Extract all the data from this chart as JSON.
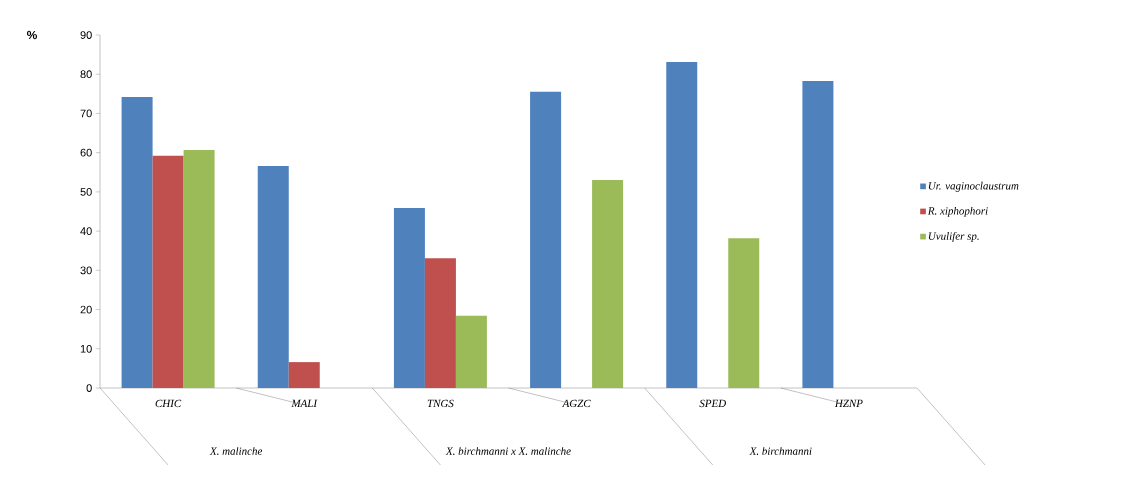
{
  "chart_data": {
    "type": "bar",
    "ylabel": "%",
    "categories": [
      "CHIC",
      "MALI",
      "TNGS",
      "AGZC",
      "SPED",
      "HZNP"
    ],
    "series": [
      {
        "name": "Ur. vaginoclaustrum",
        "color": "#4f81bd",
        "values": [
          74.2,
          56.6,
          45.9,
          75.5,
          83.1,
          78.3
        ]
      },
      {
        "name": "R. xiphophori",
        "color": "#c0504d",
        "values": [
          59.2,
          6.6,
          33.1,
          null,
          null,
          null
        ]
      },
      {
        "name": "Uvulifer sp.",
        "color": "#9bbb59",
        "values": [
          60.7,
          null,
          18.4,
          53.0,
          38.2,
          null
        ]
      }
    ],
    "annotations": [
      "X. malinche",
      "X. birchmanni x X. malinche",
      "X. birchmanni"
    ],
    "ylim": [
      0,
      90
    ],
    "yticks": [
      0,
      10,
      20,
      30,
      40,
      50,
      60,
      70,
      80,
      90
    ],
    "grid": false,
    "legend": "right"
  }
}
